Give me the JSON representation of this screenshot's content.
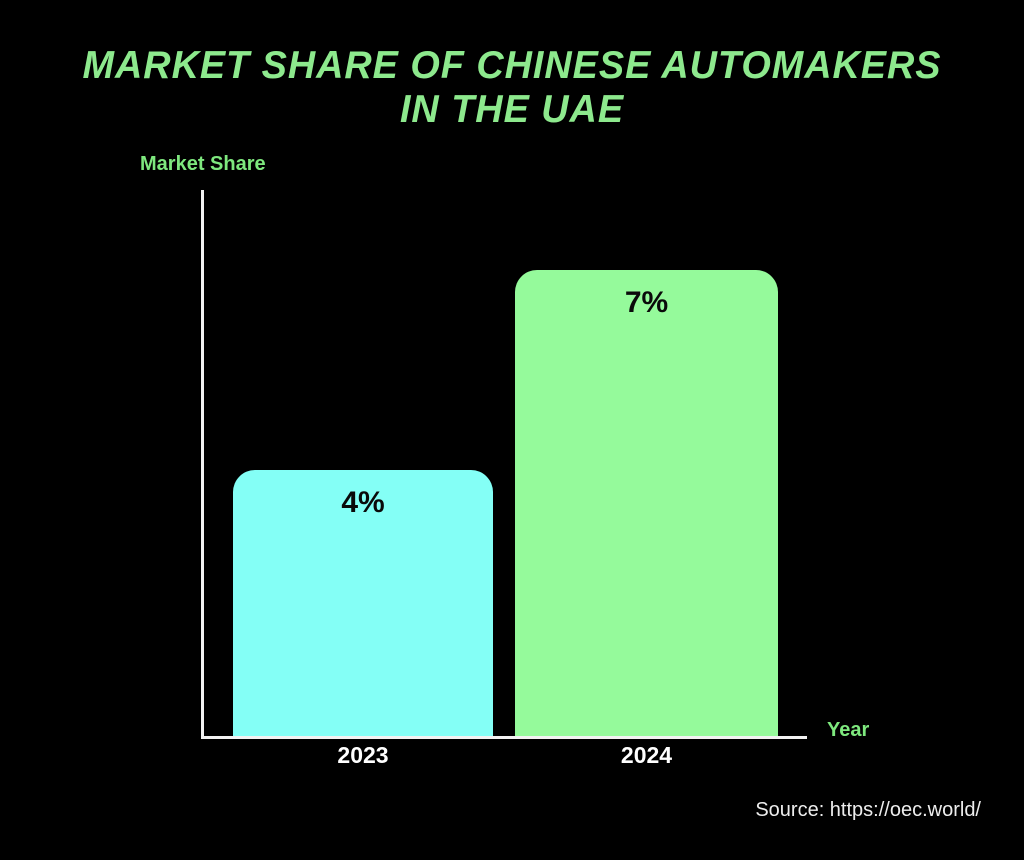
{
  "header": {
    "title_line1": "MARKET SHARE OF CHINESE AUTOMAKERS",
    "title_line2": "IN THE UAE"
  },
  "chart_data": {
    "type": "bar",
    "title": "Market Share of Chinese Automakers in the UAE",
    "categories": [
      "2023",
      "2024"
    ],
    "values": [
      4,
      7
    ],
    "value_labels": [
      "4%",
      "7%"
    ],
    "unit": "%",
    "xlabel": "Year",
    "ylabel": "Market Share",
    "ylim": [
      0,
      8
    ],
    "grid": false,
    "legend": false,
    "bar_colors": [
      "#84FFF6",
      "#95FA9B"
    ],
    "colors": {
      "background": "#000000",
      "title_green": "#8DE98D",
      "axis_label_green": "#7EE87E",
      "axis_line": "#F2F2F2",
      "tick_label": "#FFFFFF",
      "value_label": "#0A0A0A",
      "source_text": "#EDEDED"
    }
  },
  "footer": {
    "source": "Source: https://oec.world/"
  }
}
